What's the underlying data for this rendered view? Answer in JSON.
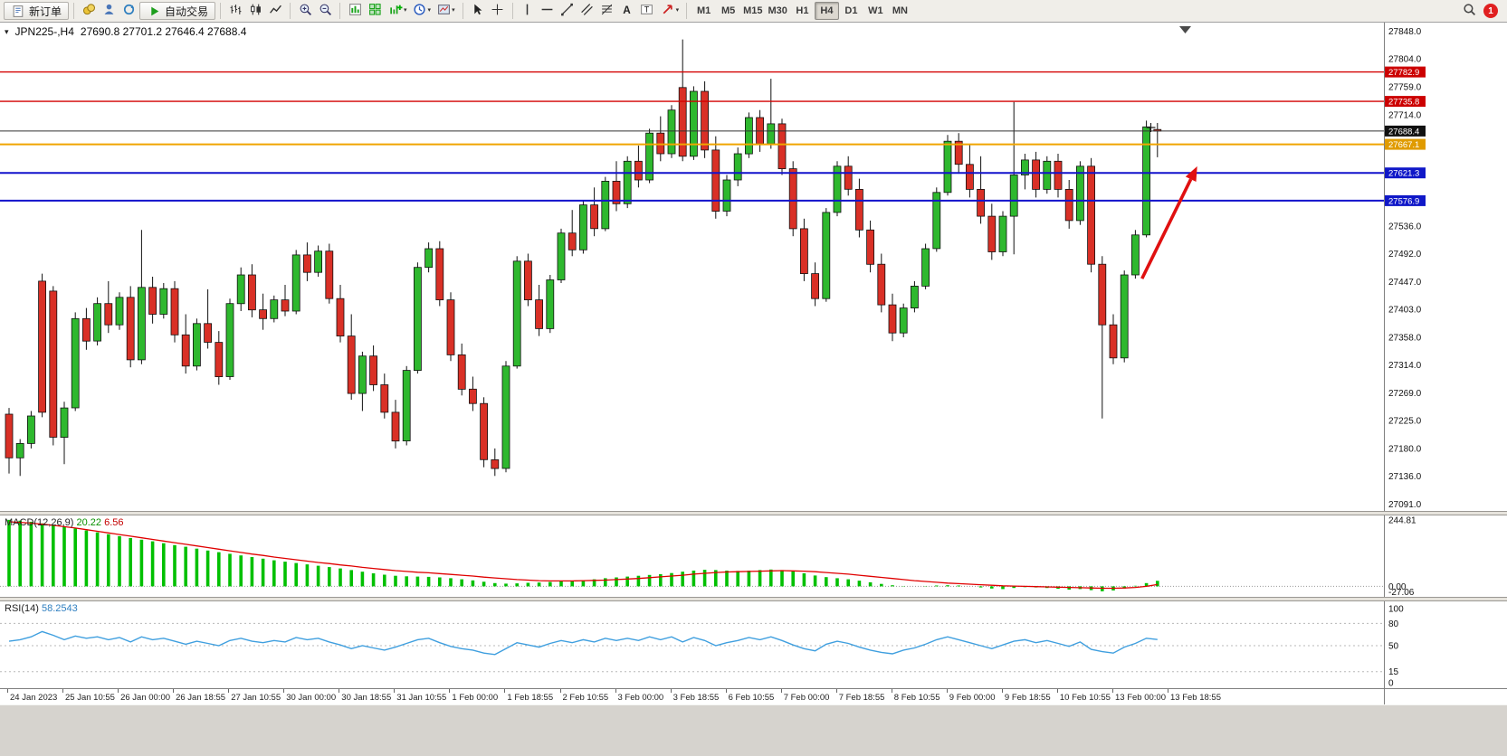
{
  "toolbar": {
    "new_order": "新订单",
    "autotrading": "自动交易",
    "left_icons": [
      "coins-icon",
      "user-icon",
      "refresh-icon"
    ],
    "chart_icons": [
      "bar-chart-icon",
      "candlestick-icon",
      "line-chart-icon"
    ],
    "zoom_icons": [
      "zoom-in-icon",
      "zoom-out-icon"
    ],
    "window_icons": [
      "indicators-icon",
      "tile-windows-icon"
    ],
    "dropdown_icons": [
      "add-indicator-icon",
      "period-icon",
      "template-icon"
    ],
    "pointer_icons": [
      "cursor-icon",
      "crosshair-icon"
    ],
    "draw_icons": [
      "vertical-line-icon",
      "horizontal-line-icon",
      "trendline-icon",
      "channel-icon",
      "fibonacci-icon",
      "text-icon",
      "label-icon"
    ],
    "arrow_tool": [
      "arrows-icon"
    ],
    "timeframes": [
      "M1",
      "M5",
      "M15",
      "M30",
      "H1",
      "H4",
      "D1",
      "W1",
      "MN"
    ],
    "active_timeframe": "H4",
    "right_icons": [
      "search-icon"
    ],
    "notification_count": "1"
  },
  "chart": {
    "title": "JPN225-,H4",
    "ohlc": "27690.8 27701.2 27646.4 27688.4"
  },
  "price_axis": {
    "ticks": [
      27848,
      27804,
      27759,
      27714,
      27536,
      27492,
      27447,
      27403,
      27358,
      27314,
      27269,
      27225,
      27180,
      27136,
      27091
    ],
    "badges": [
      {
        "price": 27782.9,
        "color": "#cc0000",
        "name": "resistance-level-1"
      },
      {
        "price": 27735.8,
        "color": "#cc0000",
        "name": "resistance-level-2"
      },
      {
        "price": 27688.4,
        "color": "#111111",
        "name": "current-price"
      },
      {
        "price": 27667.1,
        "color": "#e09b00",
        "name": "pivot-level"
      },
      {
        "price": 27621.3,
        "color": "#1018c8",
        "name": "support-level-1"
      },
      {
        "price": 27576.9,
        "color": "#1018c8",
        "name": "support-level-2"
      }
    ]
  },
  "chart_data": {
    "type": "candlestick",
    "symbol": "JPN225-",
    "timeframe": "H4",
    "ylim": [
      27091,
      27848
    ],
    "colors": {
      "up": "#2eb82e",
      "down": "#d93026",
      "wick": "#111111"
    },
    "candles": [
      [
        27235,
        27245,
        27140,
        27165
      ],
      [
        27165,
        27195,
        27136,
        27188
      ],
      [
        27188,
        27240,
        27180,
        27232
      ],
      [
        27448,
        27460,
        27230,
        27238
      ],
      [
        27432,
        27440,
        27185,
        27198
      ],
      [
        27198,
        27255,
        27155,
        27245
      ],
      [
        27245,
        27398,
        27240,
        27388
      ],
      [
        27388,
        27405,
        27338,
        27352
      ],
      [
        27352,
        27422,
        27345,
        27412
      ],
      [
        27412,
        27448,
        27365,
        27378
      ],
      [
        27378,
        27430,
        27370,
        27422
      ],
      [
        27422,
        27440,
        27310,
        27322
      ],
      [
        27322,
        27530,
        27315,
        27438
      ],
      [
        27438,
        27455,
        27380,
        27395
      ],
      [
        27395,
        27445,
        27388,
        27436
      ],
      [
        27436,
        27448,
        27350,
        27362
      ],
      [
        27362,
        27395,
        27300,
        27312
      ],
      [
        27312,
        27388,
        27305,
        27380
      ],
      [
        27380,
        27435,
        27340,
        27350
      ],
      [
        27350,
        27368,
        27282,
        27295
      ],
      [
        27295,
        27420,
        27290,
        27412
      ],
      [
        27412,
        27470,
        27400,
        27458
      ],
      [
        27458,
        27475,
        27390,
        27402
      ],
      [
        27402,
        27428,
        27370,
        27388
      ],
      [
        27388,
        27425,
        27382,
        27418
      ],
      [
        27418,
        27442,
        27392,
        27400
      ],
      [
        27400,
        27498,
        27395,
        27490
      ],
      [
        27490,
        27510,
        27448,
        27462
      ],
      [
        27462,
        27505,
        27455,
        27496
      ],
      [
        27496,
        27508,
        27412,
        27420
      ],
      [
        27420,
        27442,
        27350,
        27360
      ],
      [
        27360,
        27395,
        27258,
        27268
      ],
      [
        27268,
        27335,
        27240,
        27328
      ],
      [
        27328,
        27345,
        27272,
        27282
      ],
      [
        27282,
        27300,
        27228,
        27238
      ],
      [
        27238,
        27258,
        27180,
        27192
      ],
      [
        27192,
        27312,
        27185,
        27305
      ],
      [
        27305,
        27478,
        27300,
        27470
      ],
      [
        27470,
        27510,
        27462,
        27500
      ],
      [
        27500,
        27512,
        27408,
        27418
      ],
      [
        27418,
        27430,
        27320,
        27330
      ],
      [
        27330,
        27348,
        27265,
        27275
      ],
      [
        27275,
        27295,
        27240,
        27252
      ],
      [
        27252,
        27262,
        27150,
        27162
      ],
      [
        27162,
        27180,
        27136,
        27148
      ],
      [
        27148,
        27320,
        27142,
        27312
      ],
      [
        27312,
        27488,
        27308,
        27480
      ],
      [
        27480,
        27492,
        27408,
        27418
      ],
      [
        27418,
        27442,
        27360,
        27372
      ],
      [
        27372,
        27458,
        27365,
        27450
      ],
      [
        27450,
        27532,
        27445,
        27525
      ],
      [
        27525,
        27562,
        27488,
        27498
      ],
      [
        27498,
        27578,
        27492,
        27570
      ],
      [
        27570,
        27598,
        27520,
        27532
      ],
      [
        27532,
        27615,
        27528,
        27608
      ],
      [
        27608,
        27640,
        27560,
        27572
      ],
      [
        27572,
        27648,
        27565,
        27640
      ],
      [
        27640,
        27665,
        27598,
        27610
      ],
      [
        27610,
        27692,
        27605,
        27685
      ],
      [
        27685,
        27712,
        27640,
        27652
      ],
      [
        27652,
        27730,
        27645,
        27722
      ],
      [
        27758,
        27835,
        27640,
        27648
      ],
      [
        27648,
        27760,
        27642,
        27752
      ],
      [
        27752,
        27768,
        27645,
        27658
      ],
      [
        27658,
        27680,
        27548,
        27560
      ],
      [
        27560,
        27618,
        27552,
        27610
      ],
      [
        27610,
        27662,
        27600,
        27652
      ],
      [
        27652,
        27718,
        27645,
        27710
      ],
      [
        27710,
        27722,
        27655,
        27668
      ],
      [
        27668,
        27772,
        27660,
        27700
      ],
      [
        27700,
        27708,
        27618,
        27628
      ],
      [
        27628,
        27640,
        27520,
        27532
      ],
      [
        27532,
        27548,
        27448,
        27460
      ],
      [
        27460,
        27478,
        27408,
        27420
      ],
      [
        27420,
        27565,
        27415,
        27558
      ],
      [
        27558,
        27640,
        27552,
        27632
      ],
      [
        27632,
        27648,
        27585,
        27595
      ],
      [
        27595,
        27612,
        27518,
        27530
      ],
      [
        27530,
        27545,
        27462,
        27475
      ],
      [
        27475,
        27492,
        27398,
        27410
      ],
      [
        27410,
        27428,
        27352,
        27365
      ],
      [
        27365,
        27412,
        27358,
        27405
      ],
      [
        27405,
        27448,
        27398,
        27440
      ],
      [
        27440,
        27508,
        27435,
        27500
      ],
      [
        27500,
        27598,
        27495,
        27590
      ],
      [
        27590,
        27682,
        27585,
        27672
      ],
      [
        27672,
        27685,
        27620,
        27635
      ],
      [
        27635,
        27668,
        27582,
        27595
      ],
      [
        27595,
        27648,
        27540,
        27552
      ],
      [
        27552,
        27572,
        27482,
        27495
      ],
      [
        27495,
        27560,
        27488,
        27552
      ],
      [
        27552,
        27735,
        27491,
        27618
      ],
      [
        27618,
        27652,
        27595,
        27642
      ],
      [
        27642,
        27655,
        27582,
        27595
      ],
      [
        27595,
        27648,
        27588,
        27640
      ],
      [
        27640,
        27652,
        27582,
        27595
      ],
      [
        27595,
        27610,
        27532,
        27545
      ],
      [
        27545,
        27640,
        27538,
        27632
      ],
      [
        27632,
        27645,
        27462,
        27475
      ],
      [
        27475,
        27488,
        27228,
        27378
      ],
      [
        27378,
        27395,
        27315,
        27325
      ],
      [
        27325,
        27465,
        27318,
        27458
      ],
      [
        27458,
        27530,
        27452,
        27522
      ],
      [
        27522,
        27705,
        27518,
        27695
      ],
      [
        27690.8,
        27701.2,
        27646.4,
        27688.4
      ]
    ],
    "levels": [
      {
        "price": 27782.9,
        "color": "#d40000",
        "width": 1.4,
        "name": "hline-27782-9"
      },
      {
        "price": 27735.8,
        "color": "#d40000",
        "width": 1.4,
        "name": "hline-27735-8"
      },
      {
        "price": 27688.4,
        "color": "#333333",
        "width": 1,
        "name": "current-price-line"
      },
      {
        "price": 27667.1,
        "color": "#f0a500",
        "width": 2,
        "name": "hline-27667-1"
      },
      {
        "price": 27621.3,
        "color": "#1212cc",
        "width": 2,
        "name": "hline-27621-3"
      },
      {
        "price": 27576.9,
        "color": "#1212cc",
        "width": 2,
        "name": "hline-27576-9"
      }
    ],
    "arrow": {
      "from_index": 102.6,
      "from_price": 27452,
      "to_index": 107.6,
      "to_price": 27632,
      "color": "#e01010"
    },
    "cross_marker": {
      "index": 103.4,
      "price": 27694
    },
    "time_labels": [
      "24 Jan 2023",
      "25 Jan 10:55",
      "26 Jan 00:00",
      "26 Jan 18:55",
      "27 Jan 10:55",
      "30 Jan 00:00",
      "30 Jan 18:55",
      "31 Jan 10:55",
      "1 Feb 00:00",
      "1 Feb 18:55",
      "2 Feb 10:55",
      "3 Feb 00:00",
      "3 Feb 18:55",
      "6 Feb 10:55",
      "7 Feb 00:00",
      "7 Feb 18:55",
      "8 Feb 10:55",
      "9 Feb 00:00",
      "9 Feb 18:55",
      "10 Feb 10:55",
      "13 Feb 00:00",
      "13 Feb 18:55"
    ]
  },
  "macd": {
    "name": "MACD(12,26,9)",
    "value_main": "20.22",
    "value_signal": "6.56",
    "axis": [
      244.81,
      0,
      -27.06
    ],
    "colors": {
      "histogram": "#00c000",
      "signal": "#e00000"
    },
    "histogram": [
      245,
      242,
      238,
      232,
      226,
      220,
      213,
      206,
      199,
      192,
      185,
      178,
      172,
      166,
      159,
      152,
      146,
      139,
      132,
      126,
      120,
      114,
      108,
      102,
      96,
      91,
      86,
      81,
      76,
      71,
      66,
      60,
      54,
      48,
      43,
      39,
      37,
      36,
      35,
      33,
      30,
      26,
      22,
      17,
      12,
      10,
      11,
      13,
      14,
      16,
      18,
      20,
      23,
      26,
      30,
      33,
      36,
      39,
      42,
      45,
      49,
      54,
      58,
      61,
      60,
      58,
      57,
      58,
      60,
      62,
      60,
      55,
      48,
      40,
      34,
      30,
      26,
      21,
      15,
      9,
      4,
      1,
      0,
      1,
      3,
      4,
      3,
      0,
      -4,
      -8,
      -10,
      -6,
      -3,
      -4,
      -6,
      -9,
      -12,
      -10,
      -14,
      -18,
      -15,
      -8,
      2,
      12,
      20.22
    ],
    "signal": [
      238,
      236,
      233,
      229,
      225,
      220,
      215,
      209,
      203,
      197,
      191,
      185,
      179,
      173,
      167,
      161,
      155,
      149,
      143,
      137,
      131,
      125,
      119,
      114,
      108,
      103,
      98,
      93,
      88,
      84,
      79,
      75,
      70,
      66,
      62,
      58,
      55,
      52,
      50,
      47,
      44,
      41,
      38,
      34,
      31,
      28,
      25,
      23,
      21,
      20,
      20,
      20,
      21,
      22,
      23,
      25,
      27,
      29,
      32,
      35,
      38,
      41,
      45,
      48,
      51,
      53,
      54,
      55,
      56,
      57,
      58,
      57,
      56,
      54,
      51,
      48,
      45,
      41,
      37,
      33,
      29,
      25,
      21,
      18,
      15,
      12,
      10,
      8,
      6,
      4,
      2,
      1,
      0,
      -1,
      -2,
      -3,
      -4,
      -5,
      -6,
      -7,
      -7,
      -6,
      -4,
      0,
      6.56
    ]
  },
  "rsi": {
    "name": "RSI(14)",
    "value": "58.2543",
    "color": "#3f9fdf",
    "levels": [
      80,
      50,
      15
    ],
    "axis": [
      100,
      80,
      50,
      15,
      0
    ],
    "values": [
      56,
      58,
      62,
      69,
      64,
      58,
      63,
      60,
      62,
      58,
      61,
      55,
      62,
      58,
      60,
      56,
      52,
      56,
      53,
      50,
      57,
      60,
      56,
      54,
      57,
      55,
      61,
      58,
      60,
      55,
      51,
      46,
      50,
      47,
      44,
      48,
      53,
      58,
      60,
      54,
      49,
      46,
      44,
      40,
      38,
      46,
      54,
      51,
      48,
      53,
      57,
      54,
      58,
      55,
      60,
      57,
      60,
      57,
      62,
      58,
      62,
      55,
      61,
      57,
      50,
      54,
      57,
      61,
      58,
      62,
      57,
      51,
      46,
      43,
      52,
      56,
      53,
      48,
      44,
      41,
      39,
      44,
      47,
      52,
      58,
      62,
      58,
      54,
      50,
      46,
      51,
      56,
      58,
      54,
      57,
      53,
      49,
      55,
      45,
      42,
      40,
      48,
      53,
      60,
      58.25
    ]
  }
}
